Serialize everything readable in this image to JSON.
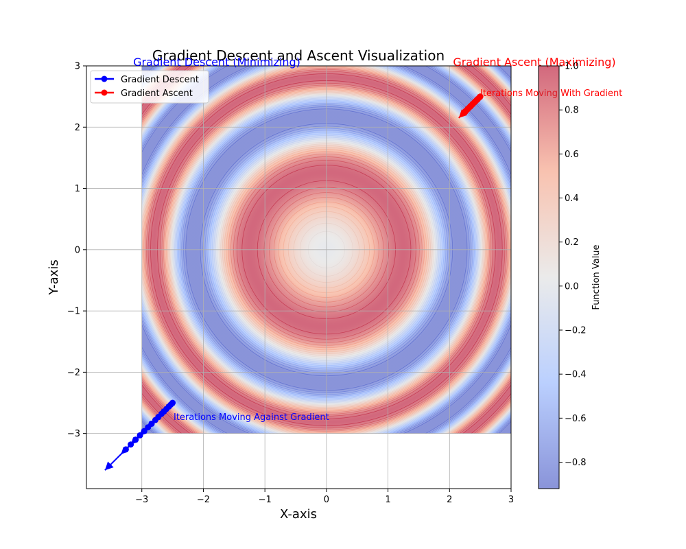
{
  "chart_data": {
    "type": "contour",
    "title": "Gradient Descent and Ascent Visualization",
    "xlabel": "X-axis",
    "ylabel": "Y-axis",
    "xlim": [
      -3.9,
      3.0
    ],
    "ylim": [
      -3.9,
      3.0
    ],
    "xticks": [
      -3,
      -2,
      -1,
      0,
      1,
      2,
      3
    ],
    "yticks": [
      -3,
      -2,
      -1,
      0,
      1,
      2,
      3
    ],
    "xtick_labels": [
      "−3",
      "−2",
      "−1",
      "0",
      "1",
      "2",
      "3"
    ],
    "ytick_labels": [
      "−3",
      "−2",
      "−1",
      "0",
      "1",
      "2",
      "3"
    ],
    "grid": true,
    "surface": {
      "function": "sin(x^2 + y^2)",
      "x_range": [
        -3,
        3
      ],
      "y_range": [
        -3,
        3
      ]
    },
    "colorbar": {
      "label": "Function Value",
      "range": [
        -0.92,
        1.0
      ],
      "ticks": [
        -0.8,
        -0.6,
        -0.4,
        -0.2,
        0.0,
        0.2,
        0.4,
        0.6,
        0.8,
        1.0
      ],
      "tick_labels": [
        "−0.8",
        "−0.6",
        "−0.4",
        "−0.2",
        "0.0",
        "0.2",
        "0.4",
        "0.6",
        "0.8",
        "1.0"
      ],
      "colormap": "coolwarm"
    },
    "series": [
      {
        "name": "Gradient Descent",
        "color": "#0000ff",
        "x": [
          -2.5,
          -2.53,
          -2.56,
          -2.6,
          -2.64,
          -2.68,
          -2.73,
          -2.78,
          -2.84,
          -2.9,
          -2.96,
          -3.03,
          -3.1,
          -3.18,
          -3.26
        ],
        "y": [
          -2.5,
          -2.53,
          -2.56,
          -2.6,
          -2.64,
          -2.68,
          -2.73,
          -2.78,
          -2.84,
          -2.9,
          -2.96,
          -3.03,
          -3.1,
          -3.18,
          -3.26
        ],
        "arrow_tip": [
          -3.6,
          -3.6
        ]
      },
      {
        "name": "Gradient Ascent",
        "color": "#ff0000",
        "x": [
          2.5,
          2.48,
          2.46,
          2.44,
          2.42,
          2.4,
          2.38,
          2.36,
          2.34,
          2.32,
          2.3,
          2.28,
          2.26
        ],
        "y": [
          2.5,
          2.48,
          2.46,
          2.44,
          2.42,
          2.4,
          2.38,
          2.36,
          2.34,
          2.32,
          2.3,
          2.28,
          2.26
        ],
        "arrow_tip": [
          2.15,
          2.15
        ]
      }
    ],
    "legend": {
      "position": "top-left",
      "entries": [
        {
          "label": "Gradient Descent",
          "color": "#0000ff"
        },
        {
          "label": "Gradient Ascent",
          "color": "#ff0000"
        }
      ]
    },
    "annotations": [
      {
        "text": "Gradient Descent (Minimizing)",
        "color": "#0000ff",
        "x": -3.2,
        "y": 2.95
      },
      {
        "text": "Gradient Ascent (Maximizing)",
        "color": "#ff0000",
        "x": 2.0,
        "y": 2.95
      },
      {
        "text": "Iterations Moving With Gradient",
        "color": "#ff0000",
        "x": 2.5,
        "y": 2.5
      },
      {
        "text": "Iterations Moving Against Gradient",
        "color": "#0000ff",
        "x": -2.5,
        "y": -2.8
      }
    ]
  }
}
